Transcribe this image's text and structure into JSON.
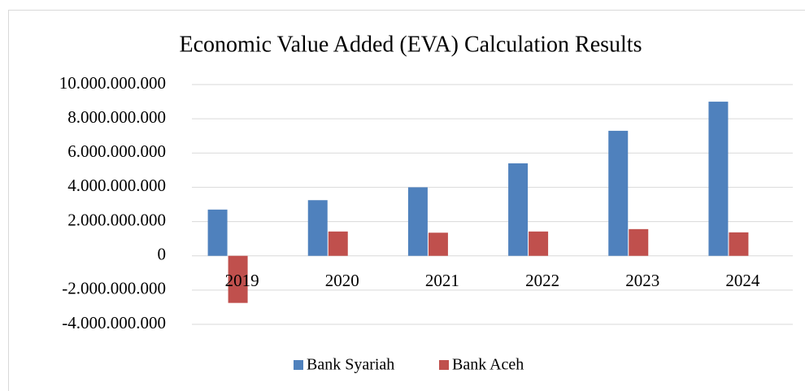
{
  "chart_data": {
    "type": "bar",
    "title": "Economic Value Added (EVA) Calculation Results",
    "categories": [
      "2019",
      "2020",
      "2021",
      "2022",
      "2023",
      "2024"
    ],
    "series": [
      {
        "name": "Bank Syariah",
        "color": "#4f81bd",
        "values": [
          2700000000,
          3250000000,
          4000000000,
          5400000000,
          7300000000,
          9000000000
        ]
      },
      {
        "name": "Bank Aceh",
        "color": "#c0504d",
        "values": [
          -2750000000,
          1420000000,
          1350000000,
          1420000000,
          1560000000,
          1370000000
        ]
      }
    ],
    "ylim": [
      -4000000000,
      10000000000
    ],
    "yticks": [
      {
        "value": -4000000000,
        "label": "-4.000.000.000"
      },
      {
        "value": -2000000000,
        "label": "-2.000.000.000"
      },
      0,
      {
        "value": 2000000000,
        "label": "2.000.000.000"
      },
      {
        "value": 4000000000,
        "label": "4.000.000.000"
      },
      {
        "value": 6000000000,
        "label": "6.000.000.000"
      },
      {
        "value": 8000000000,
        "label": "8.000.000.000"
      },
      {
        "value": 10000000000,
        "label": "10.000.000.000"
      }
    ],
    "grid": true,
    "legend": "bottom"
  }
}
